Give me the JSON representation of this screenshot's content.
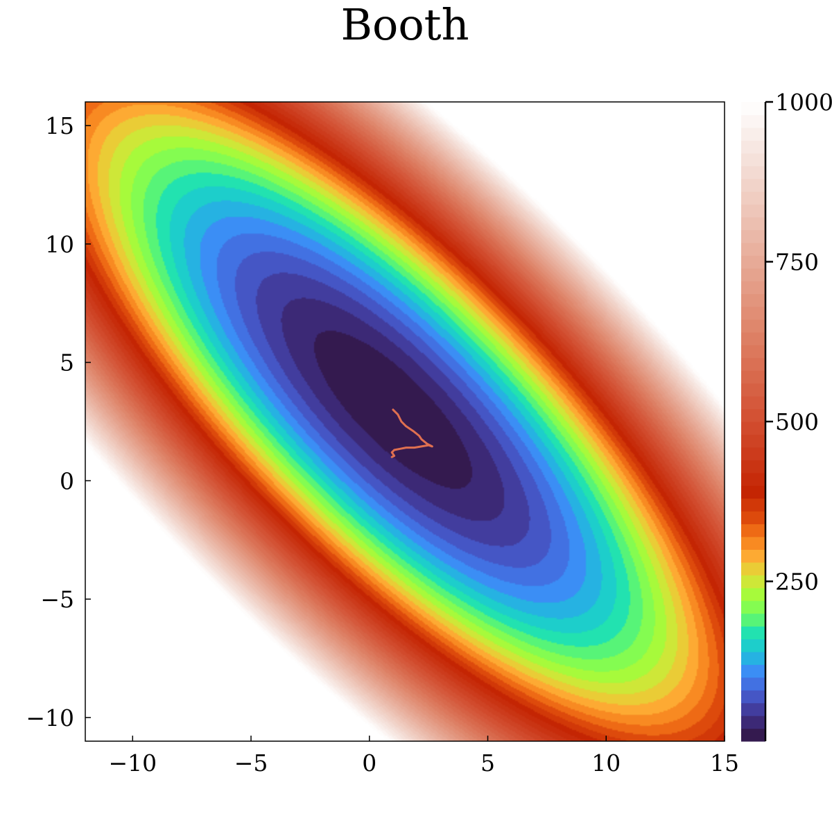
{
  "chart_data": {
    "type": "contour",
    "title": "Booth",
    "function": "(x + 2y - 7)^2 + (2x + y - 5)^2",
    "xlim": [
      -12,
      15
    ],
    "ylim": [
      -11,
      16
    ],
    "x_ticks": [
      {
        "value": -10,
        "label": "−10"
      },
      {
        "value": -5,
        "label": "−5"
      },
      {
        "value": 0,
        "label": "0"
      },
      {
        "value": 5,
        "label": "5"
      },
      {
        "value": 10,
        "label": "10"
      },
      {
        "value": 15,
        "label": "15"
      }
    ],
    "y_ticks": [
      {
        "value": -10,
        "label": "−10"
      },
      {
        "value": -5,
        "label": "−5"
      },
      {
        "value": 0,
        "label": "0"
      },
      {
        "value": 5,
        "label": "5"
      },
      {
        "value": 10,
        "label": "10"
      },
      {
        "value": 15,
        "label": "15"
      }
    ],
    "colorbar": {
      "range": [
        0,
        1000
      ],
      "ticks": [
        {
          "value": 250,
          "label": "250"
        },
        {
          "value": 500,
          "label": "500"
        },
        {
          "value": 750,
          "label": "750"
        },
        {
          "value": 1000,
          "label": "1000"
        }
      ],
      "level_step": 20,
      "colormap_stops": [
        {
          "v": 0,
          "color": "#30123b"
        },
        {
          "v": 40,
          "color": "#40318a"
        },
        {
          "v": 80,
          "color": "#4662d8"
        },
        {
          "v": 110,
          "color": "#3b8ef5"
        },
        {
          "v": 140,
          "color": "#1bc4d8"
        },
        {
          "v": 170,
          "color": "#22e2b0"
        },
        {
          "v": 200,
          "color": "#72fd5c"
        },
        {
          "v": 230,
          "color": "#a7fa3b"
        },
        {
          "v": 260,
          "color": "#e1dd37"
        },
        {
          "v": 290,
          "color": "#fdaa33"
        },
        {
          "v": 320,
          "color": "#f67a1a"
        },
        {
          "v": 350,
          "color": "#dd4a0c"
        },
        {
          "v": 390,
          "color": "#c42503"
        },
        {
          "v": 500,
          "color": "#d24e30"
        },
        {
          "v": 650,
          "color": "#df876c"
        },
        {
          "v": 800,
          "color": "#ebbcac"
        },
        {
          "v": 920,
          "color": "#f6e4de"
        },
        {
          "v": 1000,
          "color": "#ffffff"
        }
      ]
    },
    "path": {
      "color": "#e07050",
      "points": [
        [
          1.0,
          3.0
        ],
        [
          1.2,
          2.8
        ],
        [
          1.35,
          2.5
        ],
        [
          1.55,
          2.3
        ],
        [
          1.85,
          2.1
        ],
        [
          2.1,
          1.9
        ],
        [
          2.2,
          1.75
        ],
        [
          2.45,
          1.55
        ],
        [
          2.65,
          1.45
        ],
        [
          2.5,
          1.5
        ],
        [
          2.2,
          1.45
        ],
        [
          1.9,
          1.4
        ],
        [
          1.55,
          1.4
        ],
        [
          1.3,
          1.35
        ],
        [
          1.05,
          1.3
        ],
        [
          0.95,
          1.2
        ],
        [
          1.05,
          1.05
        ],
        [
          0.95,
          1.0
        ]
      ]
    }
  }
}
